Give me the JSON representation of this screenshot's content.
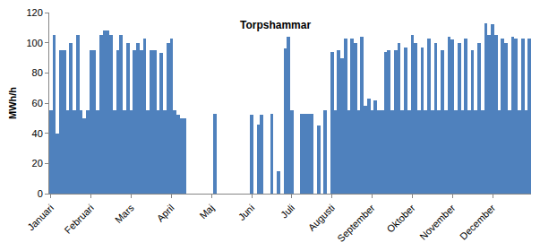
{
  "chart_data": {
    "type": "bar",
    "title": "Torpshammar",
    "y_label": "MWh/h",
    "color": "#4f81bd",
    "grid": false,
    "ylim": [
      0,
      120
    ],
    "yticks": [
      0,
      20,
      40,
      60,
      80,
      100,
      120
    ],
    "categories": [
      "Januari",
      null,
      null,
      null,
      null,
      null,
      null,
      null,
      null,
      null,
      null,
      null,
      "Februari",
      null,
      null,
      null,
      null,
      null,
      null,
      null,
      null,
      null,
      null,
      null,
      "Mars",
      null,
      null,
      null,
      null,
      null,
      null,
      null,
      null,
      null,
      null,
      null,
      "April",
      null,
      null,
      null,
      null,
      null,
      null,
      null,
      null,
      null,
      null,
      null,
      "Maj",
      null,
      null,
      null,
      null,
      null,
      null,
      null,
      null,
      null,
      null,
      null,
      "Juni",
      null,
      null,
      null,
      null,
      null,
      null,
      null,
      null,
      null,
      null,
      null,
      "Juli",
      null,
      null,
      null,
      null,
      null,
      null,
      null,
      null,
      null,
      null,
      null,
      "Augusti",
      null,
      null,
      null,
      null,
      null,
      null,
      null,
      null,
      null,
      null,
      null,
      "September",
      null,
      null,
      null,
      null,
      null,
      null,
      null,
      null,
      null,
      null,
      null,
      "Oktober",
      null,
      null,
      null,
      null,
      null,
      null,
      null,
      null,
      null,
      null,
      null,
      "November",
      null,
      null,
      null,
      null,
      null,
      null,
      null,
      null,
      null,
      null,
      null,
      "December",
      null,
      null,
      null,
      null,
      null,
      null,
      null,
      null,
      null,
      null,
      null
    ],
    "values": [
      55,
      105,
      40,
      95,
      95,
      55,
      100,
      55,
      105,
      55,
      50,
      55,
      95,
      95,
      55,
      105,
      108,
      108,
      105,
      55,
      95,
      105,
      55,
      100,
      55,
      95,
      100,
      95,
      103,
      55,
      95,
      95,
      55,
      93,
      55,
      100,
      103,
      55,
      52,
      50,
      50,
      0,
      0,
      0,
      0,
      0,
      0,
      0,
      0,
      53,
      0,
      0,
      0,
      0,
      0,
      0,
      0,
      0,
      0,
      0,
      52,
      0,
      46,
      52,
      0,
      0,
      53,
      0,
      15,
      0,
      96,
      104,
      55,
      0,
      0,
      53,
      53,
      53,
      53,
      0,
      45,
      0,
      55,
      0,
      94,
      55,
      95,
      90,
      103,
      55,
      103,
      100,
      55,
      104,
      58,
      63,
      55,
      62,
      55,
      55,
      94,
      95,
      55,
      95,
      100,
      55,
      97,
      55,
      105,
      100,
      55,
      97,
      55,
      103,
      55,
      100,
      55,
      95,
      55,
      104,
      102,
      55,
      100,
      55,
      103,
      55,
      95,
      55,
      100,
      55,
      113,
      105,
      112,
      105,
      55,
      103,
      100,
      55,
      104,
      103,
      55,
      103,
      55,
      103
    ]
  }
}
